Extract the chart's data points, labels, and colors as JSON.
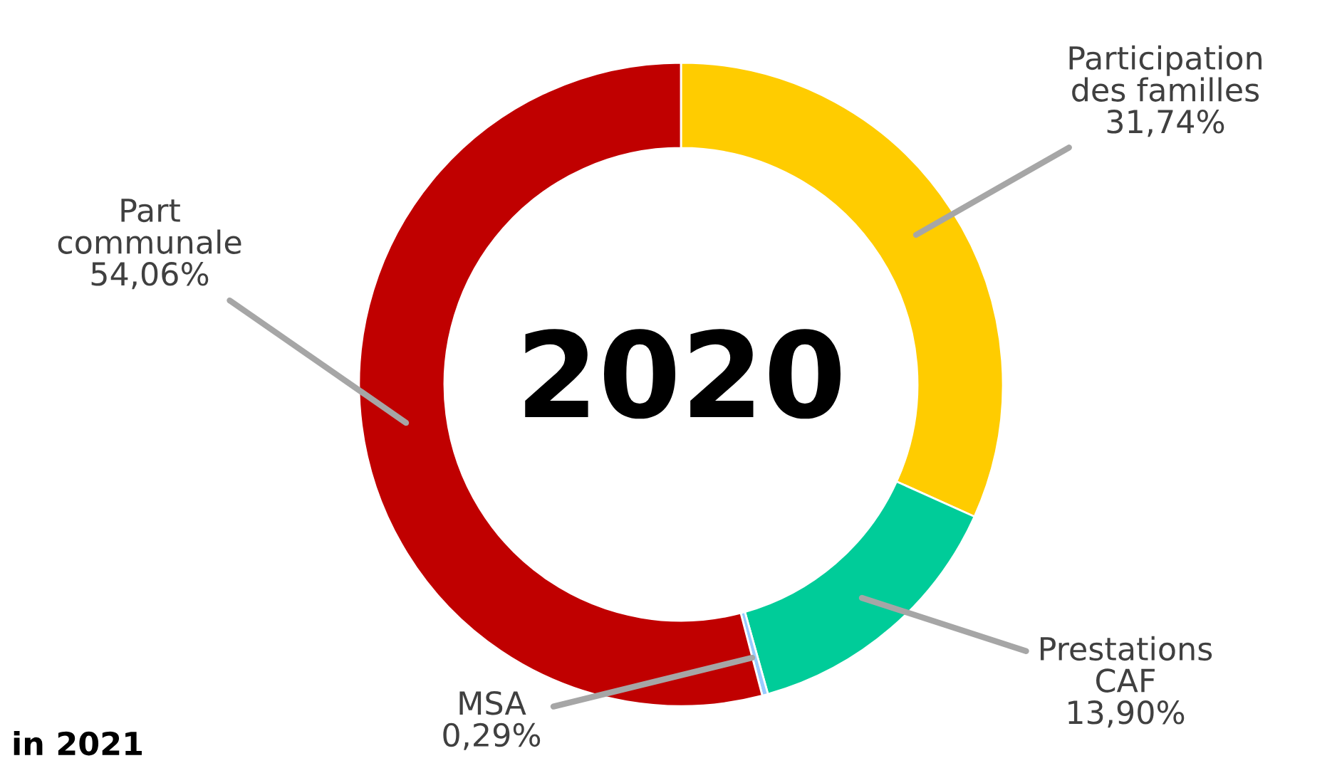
{
  "chart_data": {
    "type": "donut",
    "title": "2020",
    "categories": [
      "Participation des familles",
      "Prestations CAF",
      "MSA",
      "Part communale"
    ],
    "values": [
      31.74,
      13.9,
      0.29,
      54.06
    ],
    "colors": [
      "#ffcc00",
      "#00cc99",
      "#99ccff",
      "#c00000"
    ],
    "value_labels": [
      "31,74%",
      "13,90%",
      "0,29%",
      "54,06%"
    ],
    "annotations": [
      "in 2021"
    ],
    "legend": false
  }
}
